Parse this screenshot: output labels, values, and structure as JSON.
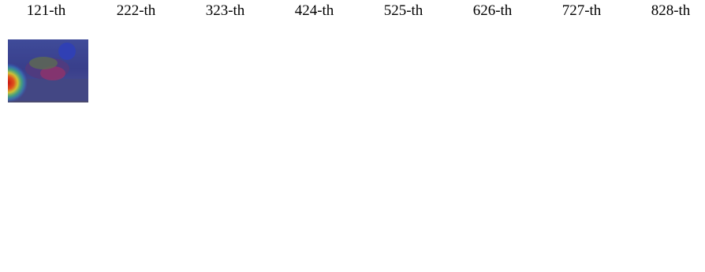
{
  "columns": [
    "121-th",
    "222-th",
    "323-th",
    "424-th",
    "525-th",
    "626-th",
    "727-th",
    "828-th"
  ]
}
